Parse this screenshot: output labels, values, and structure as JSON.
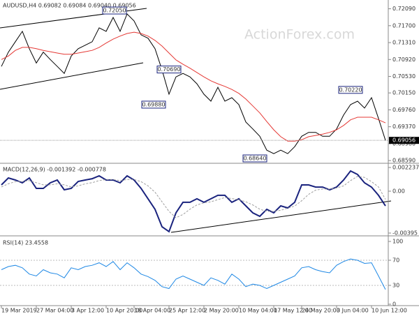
{
  "chart_data": [
    {
      "type": "line",
      "title": "AUDUSD,H4  0.69082 0.69084 0.69040 0.69056",
      "watermark": "ActionForex.com",
      "ylim": [
        0.6856,
        0.7226
      ],
      "yticks": [
        {
          "value": 0.7209,
          "label": "0.72090"
        },
        {
          "value": 0.717,
          "label": "0.71700"
        },
        {
          "value": 0.7131,
          "label": "0.71310"
        },
        {
          "value": 0.7092,
          "label": "0.70920"
        },
        {
          "value": 0.7053,
          "label": "0.70530"
        },
        {
          "value": 0.7015,
          "label": "0.70150"
        },
        {
          "value": 0.6976,
          "label": "0.69760"
        },
        {
          "value": 0.6937,
          "label": "0.69370"
        },
        {
          "value": 0.6898,
          "label": "0.68980"
        },
        {
          "value": 0.6859,
          "label": "0.68590"
        }
      ],
      "series": [
        {
          "color": "#000000",
          "values": [
            0.7076,
            0.7109,
            0.7133,
            0.7157,
            0.7117,
            0.7084,
            0.7109,
            0.7092,
            0.7076,
            0.706,
            0.71,
            0.7117,
            0.7125,
            0.7133,
            0.7165,
            0.7157,
            0.7189,
            0.7157,
            0.7197,
            0.7181,
            0.7149,
            0.7141,
            0.7117,
            0.7068,
            0.7012,
            0.7052,
            0.706,
            0.7052,
            0.7036,
            0.7012,
            0.6996,
            0.7028,
            0.6996,
            0.7004,
            0.6988,
            0.6948,
            0.6932,
            0.6915,
            0.6883,
            0.6875,
            0.6883,
            0.6875,
            0.6891,
            0.6915,
            0.6924,
            0.6924,
            0.6915,
            0.6915,
            0.6932,
            0.6964,
            0.6988,
            0.6996,
            0.698,
            0.7004,
            0.6956,
            0.69056
          ]
        },
        {
          "color": "#e53935",
          "values": [
            0.7092,
            0.71,
            0.7113,
            0.712,
            0.712,
            0.7117,
            0.7113,
            0.711,
            0.7107,
            0.7104,
            0.7104,
            0.7107,
            0.711,
            0.7113,
            0.712,
            0.713,
            0.7139,
            0.7146,
            0.7152,
            0.7155,
            0.7152,
            0.7146,
            0.7136,
            0.7123,
            0.7107,
            0.7091,
            0.7081,
            0.7072,
            0.7062,
            0.7052,
            0.7043,
            0.7036,
            0.703,
            0.7023,
            0.7014,
            0.7001,
            0.6985,
            0.6969,
            0.6949,
            0.693,
            0.6914,
            0.6904,
            0.6904,
            0.6907,
            0.6914,
            0.6917,
            0.692,
            0.6924,
            0.693,
            0.694,
            0.6953,
            0.6959,
            0.6959,
            0.6959,
            0.6953,
            0.6946
          ]
        }
      ],
      "annotations": [
        {
          "label": "0.72050",
          "value": 0.7205
        },
        {
          "label": "0.70690",
          "value": 0.7069
        },
        {
          "label": "0.69880",
          "value": 0.6988
        },
        {
          "label": "0.68640",
          "value": 0.6864
        },
        {
          "label": "0.70220",
          "value": 0.7022
        }
      ],
      "last_price": {
        "label": "0.69056",
        "value": 0.69056
      }
    },
    {
      "type": "line",
      "title": "MACD(12,26,9) -0.001392 -0.000778",
      "ylim": [
        -0.00395,
        0.002237
      ],
      "yticks": [
        0.002237,
        {
          "value": 0,
          "label": "0.00"
        },
        -0.00395
      ],
      "series": [
        {
          "color": "#1a237e",
          "values": [
            0.00059,
            0.00125,
            0.00105,
            0.00079,
            0.00125,
            0.00026,
            0.00026,
            0.00079,
            0.00105,
            0.00013,
            0.00026,
            0.00092,
            0.00105,
            0.00118,
            0.00145,
            0.00105,
            0.00105,
            0.00079,
            0.00145,
            0.00105,
            0.00026,
            -0.00072,
            -0.00171,
            -0.00336,
            -0.00382,
            -0.00204,
            -0.00105,
            -0.00105,
            -0.00072,
            -0.00105,
            -0.00072,
            -0.00039,
            -0.00039,
            -0.00105,
            -0.00072,
            -0.00138,
            -0.00204,
            -0.00237,
            -0.00171,
            -0.00204,
            -0.00138,
            -0.00158,
            -0.00105,
            0.00059,
            0.00059,
            0.00039,
            0.00039,
            0.00013,
            0.00039,
            0.00105,
            0.00191,
            0.00158,
            0.00079,
            0.00039,
            -0.00039,
            -0.00139
          ]
        },
        {
          "color": "#9e9e9e",
          "values": [
            0.0004,
            0.0007,
            0.0009,
            0.0009,
            0.001,
            0.0008,
            0.0006,
            0.0006,
            0.0007,
            0.0006,
            0.0004,
            0.0005,
            0.0007,
            0.0008,
            0.001,
            0.0011,
            0.0011,
            0.001,
            0.0011,
            0.0011,
            0.0009,
            0.0005,
            -0.0001,
            -0.001,
            -0.0019,
            -0.0025,
            -0.0022,
            -0.0017,
            -0.0013,
            -0.0011,
            -0.001,
            -0.0008,
            -0.0006,
            -0.0007,
            -0.0008,
            -0.001,
            -0.0013,
            -0.0017,
            -0.0019,
            -0.0019,
            -0.0018,
            -0.0016,
            -0.0014,
            -0.0009,
            -0.0003,
            0.0001,
            0.0002,
            0.0002,
            0.0003,
            0.0005,
            0.001,
            0.0014,
            0.0013,
            0.0009,
            0.0004,
            -0.00078
          ]
        }
      ]
    },
    {
      "type": "line",
      "title": "RSI(14) 23.4558",
      "ylim": [
        0,
        100
      ],
      "yticks": [
        100,
        70,
        30,
        0
      ],
      "series": [
        {
          "color": "#1e88e5",
          "values": [
            55,
            60,
            62,
            58,
            48,
            45,
            55,
            50,
            48,
            42,
            58,
            55,
            60,
            62,
            66,
            60,
            68,
            55,
            66,
            58,
            48,
            44,
            38,
            28,
            25,
            40,
            45,
            40,
            35,
            30,
            42,
            38,
            32,
            48,
            40,
            28,
            32,
            30,
            25,
            30,
            35,
            40,
            45,
            58,
            60,
            55,
            52,
            50,
            62,
            68,
            72,
            70,
            65,
            66,
            45,
            23.46
          ]
        }
      ],
      "xticks": [
        {
          "value": 0,
          "label": "19 Mar 2019"
        },
        {
          "value": 5,
          "label": "27 Mar 04:00"
        },
        {
          "value": 10,
          "label": "3 Apr 12:00"
        },
        {
          "value": 15,
          "label": "10 Apr 20:00"
        },
        {
          "value": 19,
          "label": "18 Apr 04:00"
        },
        {
          "value": 24,
          "label": "25 Apr 12:00"
        },
        {
          "value": 29,
          "label": "2 May 20:00"
        },
        {
          "value": 34,
          "label": "10 May 04:00"
        },
        {
          "value": 39,
          "label": "17 May 12:00"
        },
        {
          "value": 43,
          "label": "24 May 20:00"
        },
        {
          "value": 48,
          "label": "3 Jun 04:00"
        },
        {
          "value": 53,
          "label": "10 Jun 12:00"
        }
      ]
    }
  ]
}
